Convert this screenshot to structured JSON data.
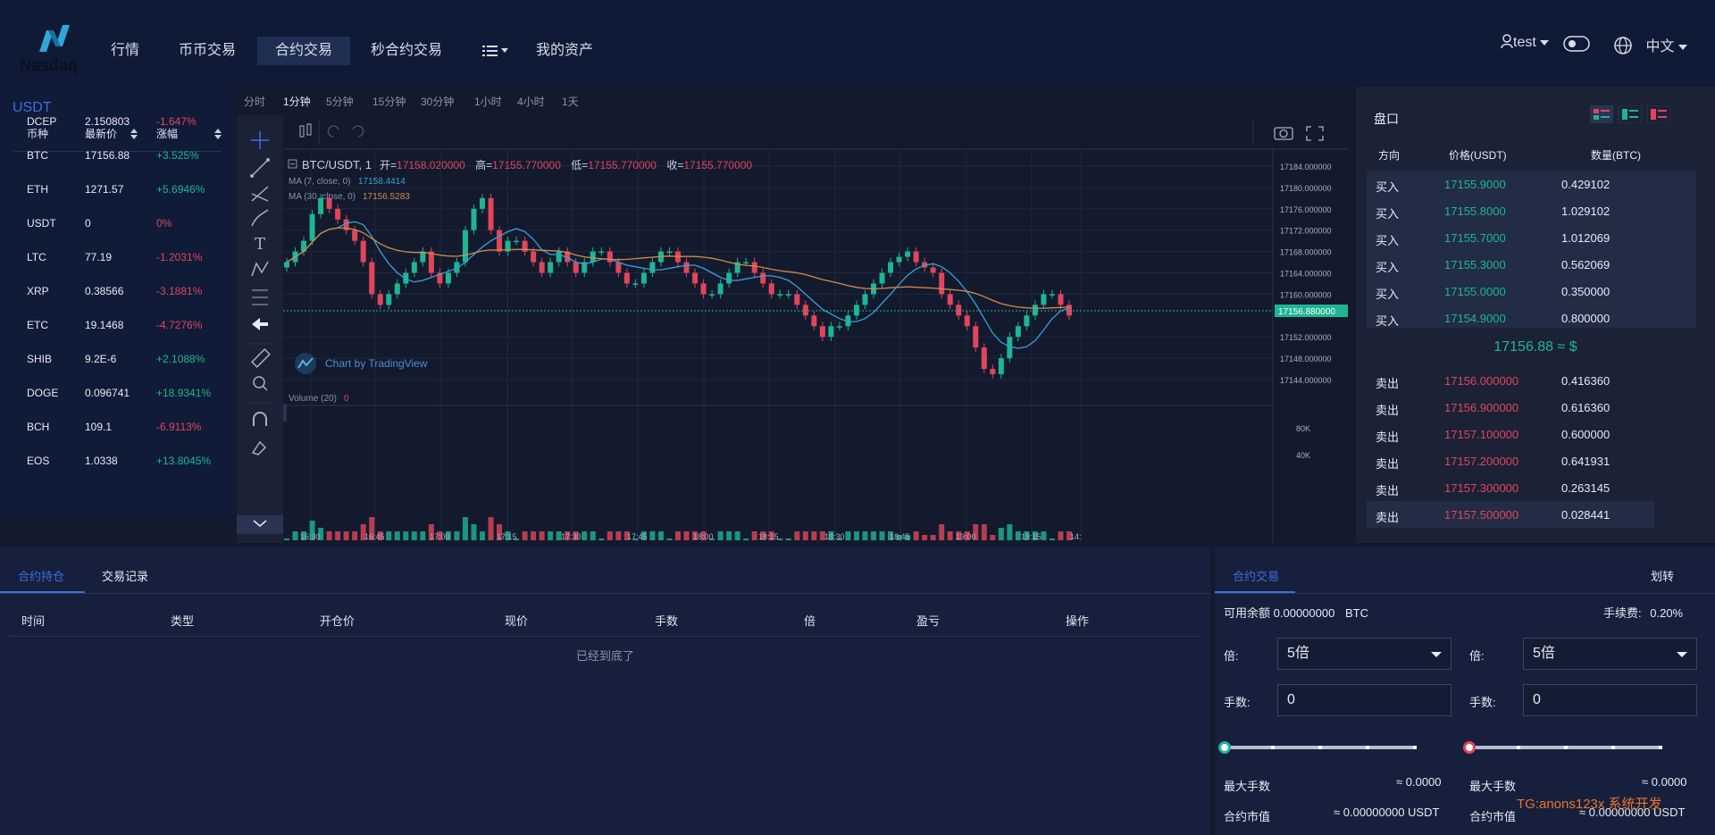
{
  "brand": {
    "name": "Nasdaq"
  },
  "nav": {
    "items": [
      "行情",
      "币币交易",
      "合约交易",
      "秒合约交易",
      "我的资产"
    ],
    "active": "合约交易",
    "user": "test",
    "language": "中文"
  },
  "market": {
    "title": "USDT",
    "headers": {
      "coin": "币种",
      "price": "最新价",
      "change": "涨幅"
    },
    "rows": [
      {
        "coin": "DCEP",
        "price": "2.150803",
        "change": "-1.647%",
        "dir": "down"
      },
      {
        "coin": "BTC",
        "price": "17156.88",
        "change": "+3.525%",
        "dir": "up"
      },
      {
        "coin": "ETH",
        "price": "1271.57",
        "change": "+5.6946%",
        "dir": "up"
      },
      {
        "coin": "USDT",
        "price": "0",
        "change": "0%",
        "dir": "down"
      },
      {
        "coin": "LTC",
        "price": "77.19",
        "change": "-1.2031%",
        "dir": "down"
      },
      {
        "coin": "XRP",
        "price": "0.38566",
        "change": "-3.1881%",
        "dir": "down"
      },
      {
        "coin": "ETC",
        "price": "19.1468",
        "change": "-4.7276%",
        "dir": "down"
      },
      {
        "coin": "SHIB",
        "price": "9.2E-6",
        "change": "+2.1088%",
        "dir": "up"
      },
      {
        "coin": "DOGE",
        "price": "0.096741",
        "change": "+18.9341%",
        "dir": "up"
      },
      {
        "coin": "BCH",
        "price": "109.1",
        "change": "-6.9113%",
        "dir": "down"
      },
      {
        "coin": "EOS",
        "price": "1.0338",
        "change": "+13.8045%",
        "dir": "up"
      }
    ]
  },
  "chart": {
    "intervals": [
      "分时",
      "1分钟",
      "5分钟",
      "15分钟",
      "30分钟",
      "1小时",
      "4小时",
      "1天"
    ],
    "active_interval": "1分钟",
    "symbol": "BTC/USDT, 1",
    "ohlc": {
      "open_label": "开=",
      "open": "17158.020000",
      "high_label": "高=",
      "high": "17155.770000",
      "low_label": "低=",
      "low": "17155.770000",
      "close_label": "收=",
      "close": "17155.770000"
    },
    "ma7_label": "MA (7, close, 0)",
    "ma7_value": "17158.4414",
    "ma30_label": "MA (30, close, 0)",
    "ma30_value": "17156.5283",
    "volume_label": "Volume (20)",
    "volume_value": "0",
    "attribution": "Chart by TradingView",
    "current_price_tag": "17156.880000",
    "y_ticks": [
      "17184.000000",
      "17180.000000",
      "17176.000000",
      "17172.000000",
      "17168.000000",
      "17164.000000",
      "17160.000000",
      "17152.000000",
      "17148.000000",
      "17144.000000"
    ],
    "vol_ticks": [
      "80K",
      "40K"
    ],
    "x_ticks": [
      "16:30",
      "16:45",
      "17:00",
      "17:15",
      "17:30",
      "17:45",
      "18:00",
      "18:15",
      "18:30",
      "18:45",
      "19:00",
      "19:15",
      "14:"
    ]
  },
  "chart_data": {
    "type": "candlestick",
    "symbol": "BTC/USDT",
    "interval": "1分钟",
    "y_range": [
      17142,
      17186
    ],
    "x_range": [
      "16:20",
      "19:27"
    ],
    "closes_approx": [
      17166,
      17168,
      17170,
      17175,
      17178,
      17176,
      17174,
      17172,
      17170,
      17166,
      17160,
      17158,
      17160,
      17162,
      17164,
      17166,
      17168,
      17164,
      17162,
      17164,
      17166,
      17172,
      17176,
      17178,
      17172,
      17168,
      17170,
      17170,
      17168,
      17166,
      17164,
      17166,
      17168,
      17166,
      17164,
      17166,
      17168,
      17168,
      17166,
      17164,
      17162,
      17162,
      17164,
      17166,
      17168,
      17168,
      17166,
      17164,
      17162,
      17160,
      17160,
      17162,
      17164,
      17166,
      17166,
      17164,
      17162,
      17160,
      17160,
      17160,
      17158,
      17156,
      17154,
      17152,
      17154,
      17154,
      17156,
      17158,
      17160,
      17162,
      17164,
      17166,
      17167,
      17168,
      17166,
      17165,
      17164,
      17160,
      17158,
      17156,
      17154,
      17150,
      17146,
      17145,
      17148,
      17152,
      17154,
      17156,
      17158,
      17160,
      17160,
      17158,
      17156
    ],
    "current_price": 17156.88
  },
  "book": {
    "title": "盘口",
    "headers": {
      "dir": "方向",
      "price": "价格(USDT)",
      "qty": "数量(BTC)"
    },
    "bids": [
      {
        "dir": "买入",
        "price": "17155.9000",
        "qty": "0.429102"
      },
      {
        "dir": "买入",
        "price": "17155.8000",
        "qty": "1.029102"
      },
      {
        "dir": "买入",
        "price": "17155.7000",
        "qty": "1.012069"
      },
      {
        "dir": "买入",
        "price": "17155.3000",
        "qty": "0.562069"
      },
      {
        "dir": "买入",
        "price": "17155.0000",
        "qty": "0.350000"
      },
      {
        "dir": "买入",
        "price": "17154.9000",
        "qty": "0.800000"
      }
    ],
    "mid": "17156.88 ≈ $",
    "asks": [
      {
        "dir": "卖出",
        "price": "17156.000000",
        "qty": "0.416360"
      },
      {
        "dir": "卖出",
        "price": "17156.900000",
        "qty": "0.616360"
      },
      {
        "dir": "卖出",
        "price": "17157.100000",
        "qty": "0.600000"
      },
      {
        "dir": "卖出",
        "price": "17157.200000",
        "qty": "0.641931"
      },
      {
        "dir": "卖出",
        "price": "17157.300000",
        "qty": "0.263145"
      },
      {
        "dir": "卖出",
        "price": "17157.500000",
        "qty": "0.028441"
      }
    ]
  },
  "positions": {
    "tabs": [
      "合约持仓",
      "交易记录"
    ],
    "columns": [
      "时间",
      "类型",
      "开仓价",
      "现价",
      "手数",
      "倍",
      "盈亏",
      "操作"
    ],
    "empty": "已经到底了"
  },
  "trade": {
    "tab": "合约交易",
    "transfer": "划转",
    "balance_label": "可用余额",
    "balance": "0.00000000",
    "balance_unit": "BTC",
    "fee_label": "手续费:",
    "fee": "0.20%",
    "leverage_label": "倍:",
    "leverage_left": "5倍",
    "leverage_right": "5倍",
    "lots_label": "手数:",
    "lots_left": "0",
    "lots_right": "0",
    "max_lots_label": "最大手数",
    "max_lots_left": "≈ 0.0000",
    "max_lots_right": "≈ 0.0000",
    "contract_value_label": "合约市值",
    "contract_value_left": "≈ 0.00000000 USDT",
    "contract_value_right": "≈ 0.00000000 USDT",
    "watermark": "TG:anons123x 系统开发"
  },
  "colors": {
    "up": "#1fb592",
    "down": "#e0465b",
    "accent": "#3b6fe0",
    "ma7": "#3aa0d8",
    "ma30": "#d48a4a"
  }
}
